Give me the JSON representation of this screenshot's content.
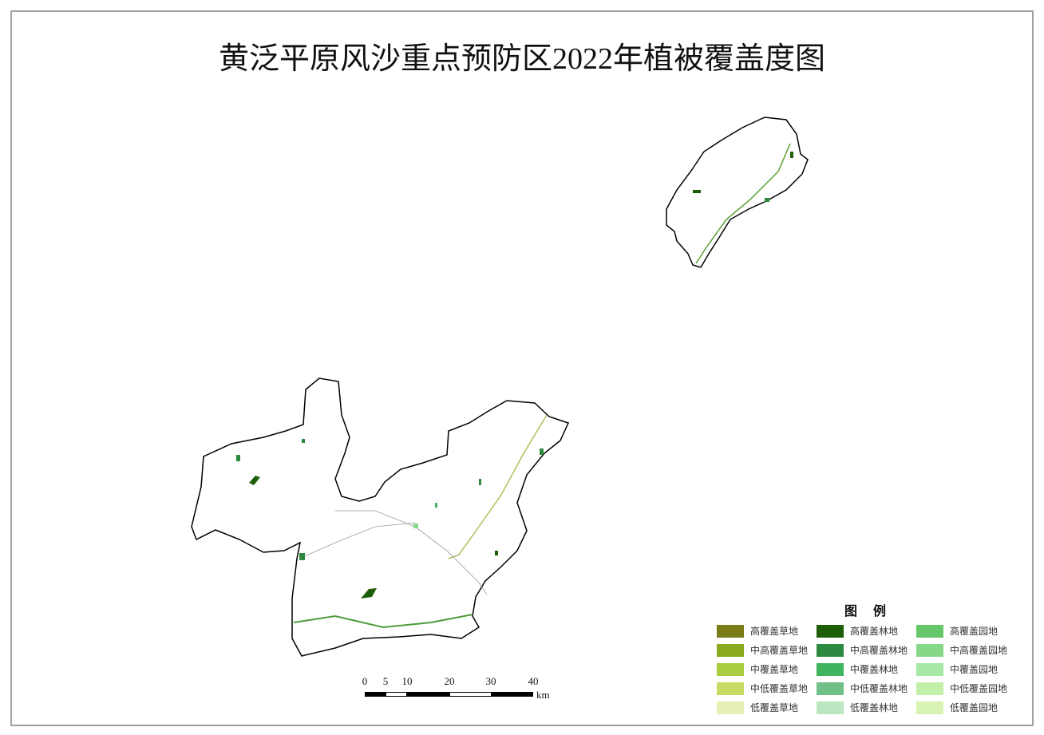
{
  "title": "黄泛平原风沙重点预防区2022年植被覆盖度图",
  "legend": {
    "title": "图 例",
    "items": [
      {
        "label": "高覆盖草地",
        "color": "#7a7c18"
      },
      {
        "label": "高覆盖林地",
        "color": "#1e5e08"
      },
      {
        "label": "高覆盖园地",
        "color": "#66c86a"
      },
      {
        "label": "中高覆盖草地",
        "color": "#8aaa1e"
      },
      {
        "label": "中高覆盖林地",
        "color": "#2b8a40"
      },
      {
        "label": "中高覆盖园地",
        "color": "#86d888"
      },
      {
        "label": "中覆盖草地",
        "color": "#aacd40"
      },
      {
        "label": "中覆盖林地",
        "color": "#3fb35e"
      },
      {
        "label": "中覆盖园地",
        "color": "#a6e8a4"
      },
      {
        "label": "中低覆盖草地",
        "color": "#c6dc62"
      },
      {
        "label": "中低覆盖林地",
        "color": "#70c088"
      },
      {
        "label": "中低覆盖园地",
        "color": "#c2f0aa"
      },
      {
        "label": "低覆盖草地",
        "color": "#e6f0b4"
      },
      {
        "label": "低覆盖林地",
        "color": "#bce6c0"
      },
      {
        "label": "低覆盖园地",
        "color": "#d8f2b4"
      }
    ]
  },
  "scale_bar": {
    "ticks": [
      "0",
      "5",
      "10",
      "20",
      "30",
      "40"
    ],
    "unit": "km"
  }
}
